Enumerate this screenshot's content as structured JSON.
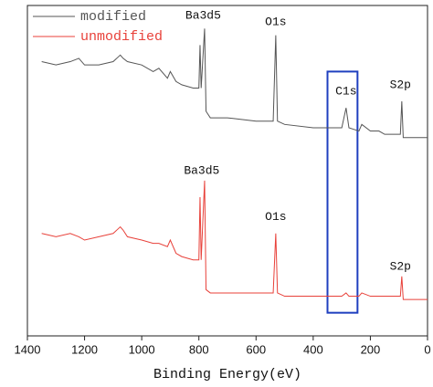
{
  "chart_data": {
    "type": "line",
    "x_label": "Binding Energy(eV)",
    "xlim": [
      1400,
      0
    ],
    "xticks": [
      1400,
      1200,
      1000,
      800,
      600,
      400,
      200,
      0
    ],
    "ylim": [
      0,
      100
    ],
    "legend": "upper left",
    "x": [
      1350,
      1300,
      1250,
      1220,
      1200,
      1150,
      1100,
      1075,
      1065,
      1050,
      1000,
      960,
      940,
      910,
      900,
      880,
      860,
      820,
      800,
      796,
      792,
      780,
      775,
      760,
      700,
      600,
      540,
      531,
      525,
      500,
      400,
      300,
      285,
      275,
      240,
      230,
      200,
      170,
      150,
      95,
      90,
      85,
      0
    ],
    "series": [
      {
        "name": "modified",
        "color": "#555555",
        "values": [
          83,
          82,
          83,
          84,
          82,
          82,
          83,
          85,
          84,
          83,
          82,
          80,
          81,
          78,
          80,
          77,
          76,
          75,
          75,
          88,
          75,
          93,
          68,
          66,
          66,
          65,
          65,
          91,
          65,
          64,
          63,
          63,
          69,
          63,
          62,
          64,
          62,
          62,
          61,
          61,
          71,
          60,
          60
        ]
      },
      {
        "name": "unmodified",
        "color": "#e8413a",
        "values": [
          31,
          30,
          31,
          30,
          29,
          30,
          31,
          33,
          32,
          30,
          29,
          28,
          28,
          27,
          29,
          25,
          24,
          23,
          23,
          42,
          23,
          47,
          14,
          13,
          13,
          13,
          13,
          31,
          13,
          12,
          12,
          12,
          13,
          12,
          12,
          13,
          12,
          12,
          12,
          12,
          18,
          11,
          11
        ]
      }
    ],
    "annotations": [
      {
        "text": "Ba3d5",
        "x": 785,
        "y": 97
      },
      {
        "text": "O1s",
        "x": 531,
        "y": 95
      },
      {
        "text": "C1s",
        "x": 285,
        "y": 74
      },
      {
        "text": "S2p",
        "x": 95,
        "y": 76
      },
      {
        "text": "Ba3d5",
        "x": 790,
        "y": 50
      },
      {
        "text": "O1s",
        "x": 531,
        "y": 36
      },
      {
        "text": "S2p",
        "x": 95,
        "y": 21
      }
    ],
    "highlight": {
      "x": [
        350,
        245
      ],
      "y": [
        7,
        80
      ],
      "color": "#1f3fbf"
    }
  }
}
